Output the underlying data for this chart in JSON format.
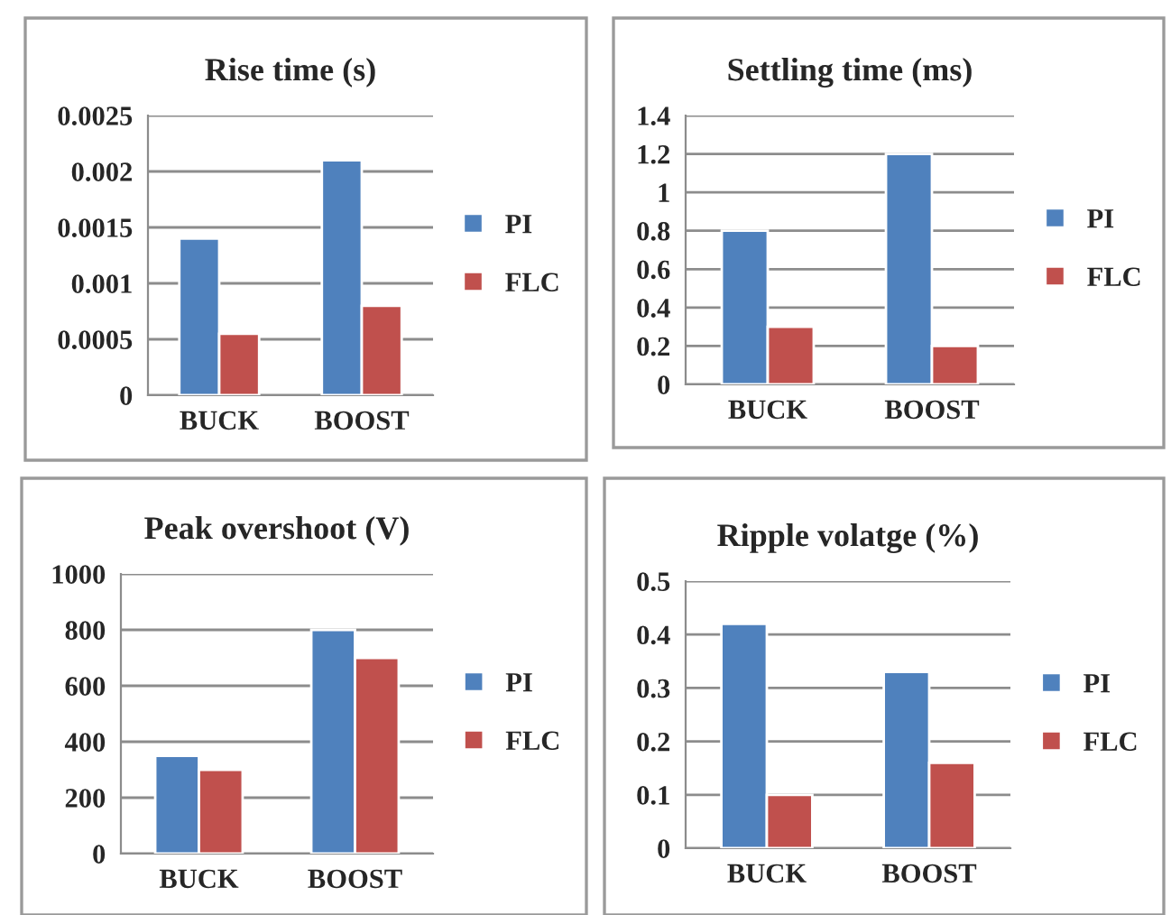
{
  "chart_data": [
    {
      "type": "bar",
      "title": "Rise time (s)",
      "categories": [
        "BUCK",
        "BOOST"
      ],
      "series": [
        {
          "name": "PI",
          "color": "#4f81bd",
          "values": [
            0.0014,
            0.0021
          ]
        },
        {
          "name": "FLC",
          "color": "#c0504d",
          "values": [
            0.00055,
            0.0008
          ]
        }
      ],
      "ylim": [
        0,
        0.0025
      ],
      "yticks": [
        0,
        0.0005,
        0.001,
        0.0015,
        0.002,
        0.0025
      ],
      "grid": "y",
      "legend": "right"
    },
    {
      "type": "bar",
      "title": "Settling time (ms)",
      "categories": [
        "BUCK",
        "BOOST"
      ],
      "series": [
        {
          "name": "PI",
          "color": "#4f81bd",
          "values": [
            0.8,
            1.2
          ]
        },
        {
          "name": "FLC",
          "color": "#c0504d",
          "values": [
            0.3,
            0.2
          ]
        }
      ],
      "ylim": [
        0,
        1.4
      ],
      "yticks": [
        0,
        0.2,
        0.4,
        0.6,
        0.8,
        1,
        1.2,
        1.4
      ],
      "grid": "y",
      "legend": "right"
    },
    {
      "type": "bar",
      "title": "Peak overshoot (V)",
      "categories": [
        "BUCK",
        "BOOST"
      ],
      "series": [
        {
          "name": "PI",
          "color": "#4f81bd",
          "values": [
            350,
            800
          ]
        },
        {
          "name": "FLC",
          "color": "#c0504d",
          "values": [
            300,
            700
          ]
        }
      ],
      "ylim": [
        0,
        1000
      ],
      "yticks": [
        0,
        200,
        400,
        600,
        800,
        1000
      ],
      "grid": "y",
      "legend": "right"
    },
    {
      "type": "bar",
      "title": "Ripple volatge (%)",
      "categories": [
        "BUCK",
        "BOOST"
      ],
      "series": [
        {
          "name": "PI",
          "color": "#4f81bd",
          "values": [
            0.42,
            0.33
          ]
        },
        {
          "name": "FLC",
          "color": "#c0504d",
          "values": [
            0.1,
            0.16
          ]
        }
      ],
      "ylim": [
        0,
        0.5
      ],
      "yticks": [
        0,
        0.1,
        0.2,
        0.3,
        0.4,
        0.5
      ],
      "grid": "y",
      "legend": "right"
    }
  ]
}
